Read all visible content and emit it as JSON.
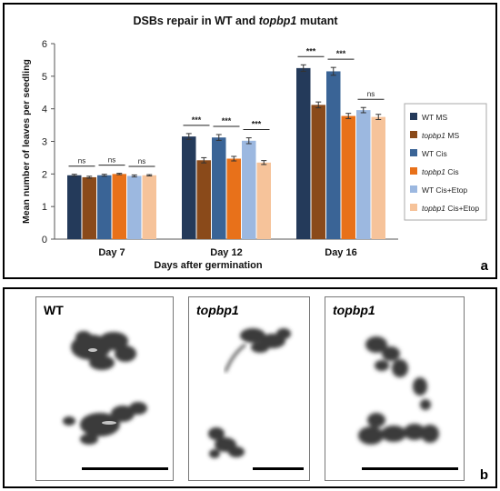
{
  "chart_data": {
    "type": "bar",
    "title_parts": [
      {
        "text": "DSBs repair in WT and ",
        "italic": false
      },
      {
        "text": "topbp1",
        "italic": true
      },
      {
        "text": " mutant",
        "italic": false
      }
    ],
    "xlabel": "Days after germination",
    "ylabel": "Mean number of leaves per seedling",
    "ylim": [
      0,
      6
    ],
    "yticks": [
      "0",
      "1",
      "2",
      "3",
      "4",
      "5",
      "6"
    ],
    "grid": false,
    "legend_position": "right",
    "categories": [
      "Day 7",
      "Day 12",
      "Day 16"
    ],
    "series": [
      {
        "name_parts": [
          {
            "text": "WT MS",
            "italic": false
          }
        ],
        "color": "#243a5a",
        "values": [
          1.96,
          3.15,
          5.25
        ],
        "errors": [
          0.03,
          0.09,
          0.1
        ]
      },
      {
        "name_parts": [
          {
            "text": "topbp1",
            "italic": true
          },
          {
            "text": " MS",
            "italic": false
          }
        ],
        "color": "#8a4a1a",
        "values": [
          1.9,
          2.42,
          4.12
        ],
        "errors": [
          0.03,
          0.08,
          0.09
        ]
      },
      {
        "name_parts": [
          {
            "text": "WT Cis",
            "italic": false
          }
        ],
        "color": "#3a6496",
        "values": [
          1.96,
          3.12,
          5.15
        ],
        "errors": [
          0.03,
          0.09,
          0.12
        ]
      },
      {
        "name_parts": [
          {
            "text": "topbp1",
            "italic": true
          },
          {
            "text": " Cis",
            "italic": false
          }
        ],
        "color": "#e8711a",
        "values": [
          2.0,
          2.47,
          3.78
        ],
        "errors": [
          0.02,
          0.07,
          0.08
        ]
      },
      {
        "name_parts": [
          {
            "text": "WT Cis+Etop",
            "italic": false
          }
        ],
        "color": "#9cb8e0",
        "values": [
          1.94,
          3.02,
          3.96
        ],
        "errors": [
          0.03,
          0.09,
          0.08
        ]
      },
      {
        "name_parts": [
          {
            "text": "topbp1",
            "italic": true
          },
          {
            "text": " Cis+Etop",
            "italic": false
          }
        ],
        "color": "#f6c39a",
        "values": [
          1.96,
          2.35,
          3.75
        ],
        "errors": [
          0.02,
          0.06,
          0.08
        ]
      }
    ],
    "significance": [
      {
        "category": 0,
        "pair": [
          0,
          1
        ],
        "label": "ns"
      },
      {
        "category": 0,
        "pair": [
          2,
          3
        ],
        "label": "ns"
      },
      {
        "category": 0,
        "pair": [
          4,
          5
        ],
        "label": "ns"
      },
      {
        "category": 1,
        "pair": [
          0,
          1
        ],
        "label": "***"
      },
      {
        "category": 1,
        "pair": [
          2,
          3
        ],
        "label": "***"
      },
      {
        "category": 1,
        "pair": [
          4,
          5
        ],
        "label": "***"
      },
      {
        "category": 2,
        "pair": [
          0,
          1
        ],
        "label": "***"
      },
      {
        "category": 2,
        "pair": [
          2,
          3
        ],
        "label": "***"
      },
      {
        "category": 2,
        "pair": [
          4,
          5
        ],
        "label": "ns"
      }
    ]
  },
  "panel_a_letter": "a",
  "panel_b_letter": "b",
  "micrographs": [
    {
      "label": "WT",
      "italic": false
    },
    {
      "label": "topbp1",
      "italic": true
    },
    {
      "label": "topbp1",
      "italic": true
    }
  ]
}
